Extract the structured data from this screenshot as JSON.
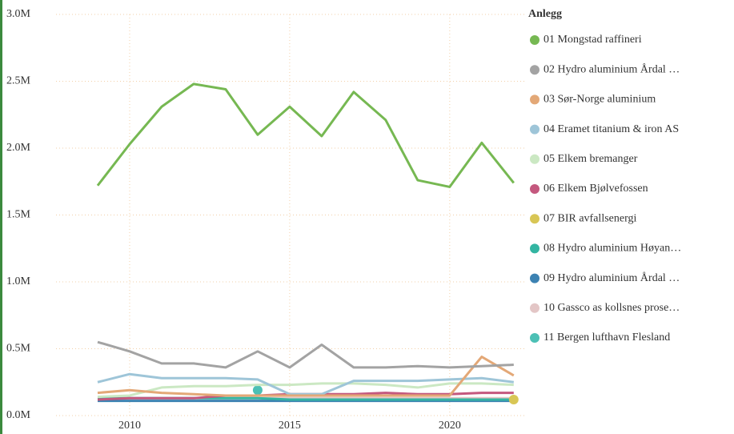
{
  "chart_data": {
    "type": "line",
    "legend_title": "Anlegg",
    "legend_position": "right",
    "grid": true,
    "x": [
      2009,
      2010,
      2011,
      2012,
      2013,
      2014,
      2015,
      2016,
      2017,
      2018,
      2019,
      2020,
      2021,
      2022
    ],
    "xlim": [
      2007.7,
      2022.33
    ],
    "xticks": [
      2010,
      2015,
      2020
    ],
    "ylim": [
      0,
      3000000
    ],
    "yticks": [
      {
        "value": 0,
        "label": "0.0M"
      },
      {
        "value": 500000,
        "label": "0.5M"
      },
      {
        "value": 1000000,
        "label": "1.0M"
      },
      {
        "value": 1500000,
        "label": "1.5M"
      },
      {
        "value": 2000000,
        "label": "2.0M"
      },
      {
        "value": 2500000,
        "label": "2.5M"
      },
      {
        "value": 3000000,
        "label": "3.0M"
      }
    ],
    "series": [
      {
        "name": "01 Mongstad raffineri",
        "color": "#76b852",
        "values": [
          1720000,
          2030000,
          2310000,
          2480000,
          2440000,
          2100000,
          2310000,
          2090000,
          2420000,
          2210000,
          1760000,
          1710000,
          2040000,
          1740000
        ]
      },
      {
        "name": "02 Hydro aluminium Årdal …",
        "color": "#a3a3a3",
        "values": [
          550000,
          480000,
          390000,
          390000,
          360000,
          480000,
          360000,
          530000,
          360000,
          360000,
          370000,
          360000,
          370000,
          380000
        ]
      },
      {
        "name": "03 Sør-Norge aluminium",
        "color": "#e3a877",
        "values": [
          170000,
          190000,
          170000,
          160000,
          150000,
          150000,
          150000,
          150000,
          150000,
          150000,
          150000,
          150000,
          440000,
          300000
        ]
      },
      {
        "name": "04 Eramet titanium & iron AS",
        "color": "#9ec5d8",
        "values": [
          250000,
          310000,
          280000,
          280000,
          280000,
          270000,
          160000,
          160000,
          260000,
          260000,
          260000,
          270000,
          280000,
          250000
        ]
      },
      {
        "name": "05 Elkem bremanger",
        "color": "#cbe8c3",
        "values": [
          140000,
          150000,
          210000,
          220000,
          220000,
          230000,
          230000,
          240000,
          240000,
          230000,
          210000,
          240000,
          240000,
          230000
        ]
      },
      {
        "name": "06 Elkem Bjølvefossen",
        "color": "#c4587e",
        "values": [
          120000,
          130000,
          130000,
          130000,
          150000,
          150000,
          160000,
          160000,
          160000,
          170000,
          160000,
          160000,
          170000,
          170000
        ]
      },
      {
        "name": "07 BIR avfallsenergi",
        "color": "#d8c655",
        "values": [
          null,
          null,
          null,
          null,
          null,
          null,
          null,
          null,
          null,
          null,
          null,
          null,
          null,
          120000
        ]
      },
      {
        "name": "08 Hydro aluminium Høyan…",
        "color": "#33b5a2",
        "values": [
          130000,
          130000,
          130000,
          130000,
          130000,
          130000,
          120000,
          120000,
          120000,
          120000,
          120000,
          120000,
          120000,
          120000
        ]
      },
      {
        "name": "09 Hydro aluminium Årdal …",
        "color": "#3c82b2",
        "values": [
          110000,
          110000,
          110000,
          110000,
          110000,
          110000,
          110000,
          110000,
          110000,
          110000,
          110000,
          110000,
          110000,
          110000
        ]
      },
      {
        "name": "10 Gassco as kollsnes prose…",
        "color": "#e3c6c6",
        "values": [
          130000,
          130000,
          130000,
          130000,
          130000,
          130000,
          130000,
          130000,
          130000,
          130000,
          130000,
          130000,
          130000,
          130000
        ]
      },
      {
        "name": "11 Bergen lufthavn Flesland",
        "color": "#4cc0b5",
        "values": [
          null,
          null,
          null,
          null,
          null,
          190000,
          null,
          null,
          null,
          null,
          null,
          null,
          null,
          null
        ]
      }
    ]
  }
}
